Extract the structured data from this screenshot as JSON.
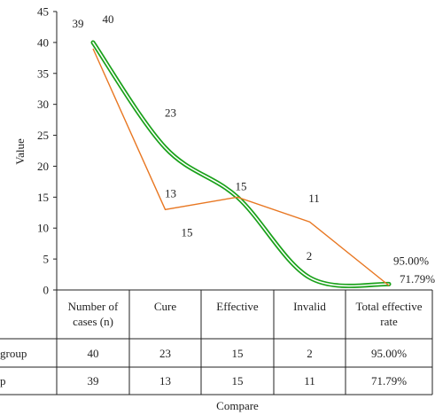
{
  "chart_data": {
    "type": "line",
    "categories": [
      "Number of cases (n)",
      "Cure",
      "Effective",
      "Invalid",
      "Total effective rate"
    ],
    "category_lines": [
      [
        "Number of",
        "cases (n)"
      ],
      [
        "Cure"
      ],
      [
        "Effective"
      ],
      [
        "Invalid"
      ],
      [
        "Total effective",
        "rate"
      ]
    ],
    "xlabel": "Compare",
    "ylabel": "Value",
    "ylim": [
      0,
      45
    ],
    "yticks": [
      0,
      5,
      10,
      15,
      20,
      25,
      30,
      35,
      40,
      45
    ],
    "series": [
      {
        "row_label": "group",
        "color": "#1aa11a",
        "style": "double-line-smooth",
        "values": [
          40,
          23,
          15,
          2,
          0.95
        ],
        "labels": [
          "40",
          "23",
          "15",
          "2",
          "95.00%"
        ],
        "table_cells": [
          "40",
          "23",
          "15",
          "2",
          "95.00%"
        ]
      },
      {
        "row_label": "p",
        "color": "#e87722",
        "style": "straight",
        "values": [
          39,
          13,
          15,
          11,
          0.7179
        ],
        "labels": [
          "39",
          "13",
          "15",
          "11",
          "71.79%"
        ],
        "table_cells": [
          "39",
          "13",
          "15",
          "11",
          "71.79%"
        ]
      }
    ]
  }
}
